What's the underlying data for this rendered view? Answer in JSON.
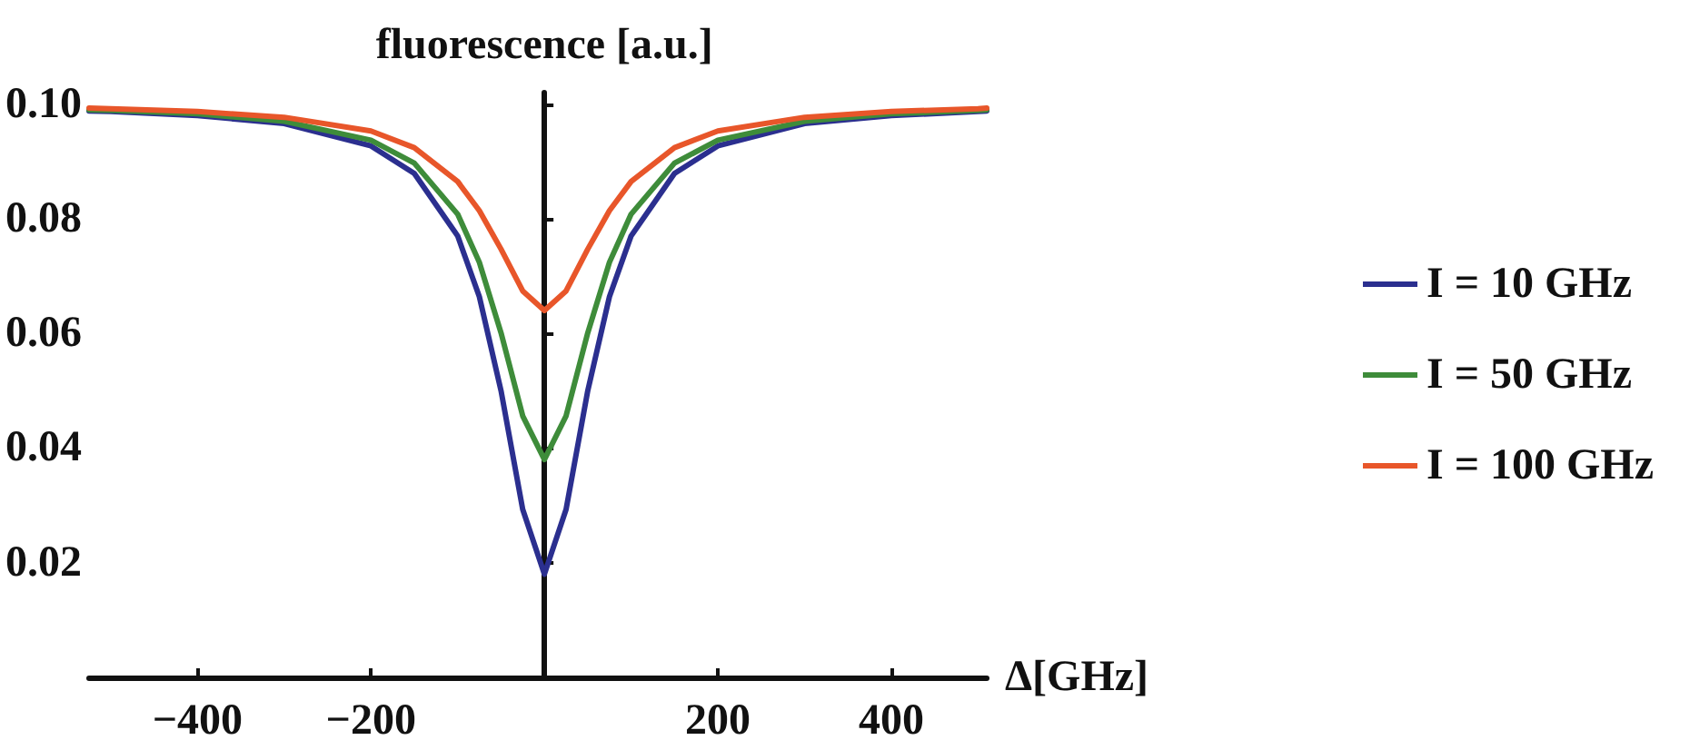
{
  "chart_data": {
    "type": "line",
    "xlabel": "Δ[GHz]",
    "ylabel": "fluorescence [a.u.]",
    "x": [
      -525,
      -500,
      -400,
      -300,
      -200,
      -150,
      -100,
      -75,
      -50,
      -25,
      0,
      25,
      50,
      75,
      100,
      150,
      200,
      300,
      400,
      500,
      510
    ],
    "series": [
      {
        "name": "I = 10 GHz",
        "color": "#2b2f8f",
        "values": [
          0.0988,
          0.0987,
          0.098,
          0.0966,
          0.0927,
          0.0879,
          0.077,
          0.0664,
          0.05,
          0.0293,
          0.018,
          0.0293,
          0.05,
          0.0664,
          0.077,
          0.0879,
          0.0927,
          0.0966,
          0.098,
          0.0987,
          0.0988
        ]
      },
      {
        "name": "I = 50 GHz",
        "color": "#3e8c3a",
        "values": [
          0.099,
          0.0989,
          0.0983,
          0.097,
          0.0937,
          0.0897,
          0.0808,
          0.0724,
          0.0601,
          0.0456,
          0.038,
          0.0456,
          0.0601,
          0.0724,
          0.0808,
          0.0897,
          0.0937,
          0.097,
          0.0983,
          0.0989,
          0.099
        ]
      },
      {
        "name": "I = 100 GHz",
        "color": "#e8562a",
        "values": [
          0.0993,
          0.0992,
          0.0987,
          0.0977,
          0.0953,
          0.0924,
          0.0865,
          0.0814,
          0.0747,
          0.0674,
          0.064,
          0.0674,
          0.0747,
          0.0814,
          0.0865,
          0.0924,
          0.0953,
          0.0977,
          0.0987,
          0.0992,
          0.0993
        ]
      }
    ],
    "xlim": [
      -525,
      510
    ],
    "xticks": [
      -400,
      -200,
      200,
      400
    ],
    "ylim": [
      0,
      0.102
    ],
    "yticks": [
      0.02,
      0.04,
      0.06,
      {
        "value": 0.08,
        "label": "0.08"
      },
      {
        "value": 0.1,
        "label": "0.10"
      }
    ],
    "grid": false,
    "legend": "right",
    "marker": "none",
    "line_style": "solid"
  }
}
